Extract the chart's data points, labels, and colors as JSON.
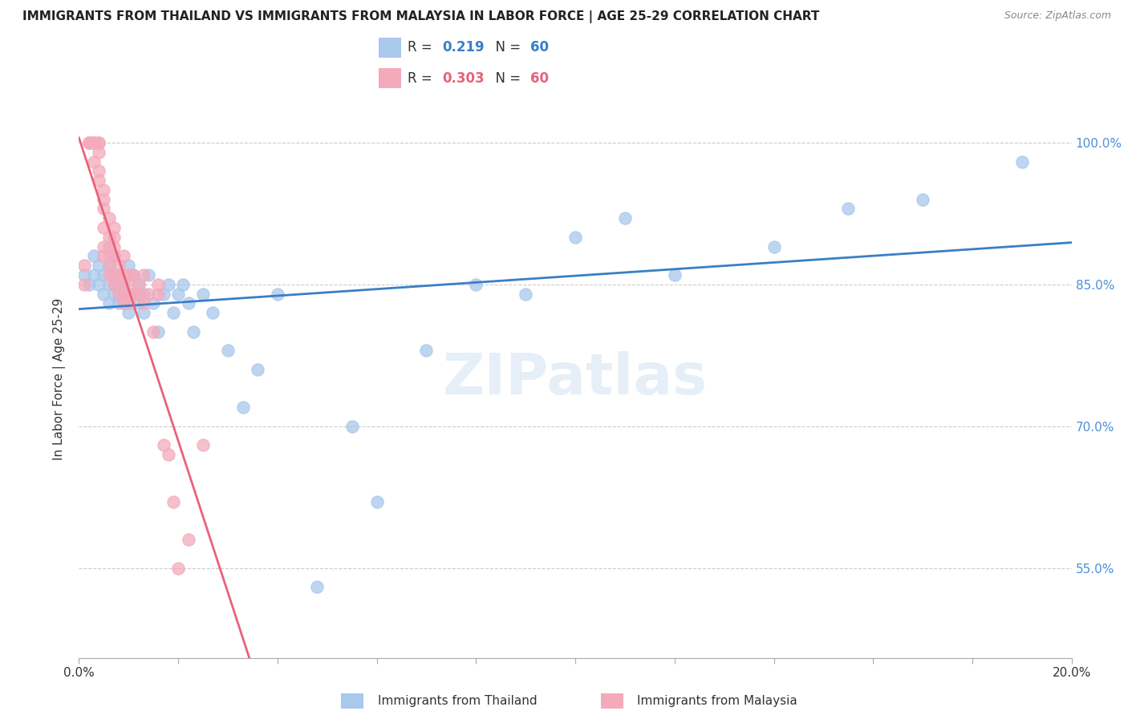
{
  "title": "IMMIGRANTS FROM THAILAND VS IMMIGRANTS FROM MALAYSIA IN LABOR FORCE | AGE 25-29 CORRELATION CHART",
  "source": "Source: ZipAtlas.com",
  "ylabel": "In Labor Force | Age 25-29",
  "yticks": [
    0.55,
    0.7,
    0.85,
    1.0
  ],
  "ytick_labels": [
    "55.0%",
    "70.0%",
    "85.0%",
    "100.0%"
  ],
  "xlim": [
    0.0,
    0.2
  ],
  "ylim": [
    0.455,
    1.045
  ],
  "thailand_R": 0.219,
  "thailand_N": 60,
  "malaysia_R": 0.303,
  "malaysia_N": 60,
  "thailand_color": "#A8C8EC",
  "malaysia_color": "#F4AABB",
  "thailand_line_color": "#3A7EC6",
  "malaysia_line_color": "#E8627A",
  "legend_label_thailand": "Immigrants from Thailand",
  "legend_label_malaysia": "Immigrants from Malaysia",
  "watermark": "ZIPatlas",
  "thailand_x": [
    0.001,
    0.002,
    0.003,
    0.003,
    0.004,
    0.004,
    0.005,
    0.005,
    0.006,
    0.006,
    0.006,
    0.007,
    0.007,
    0.007,
    0.007,
    0.008,
    0.008,
    0.008,
    0.008,
    0.009,
    0.009,
    0.009,
    0.01,
    0.01,
    0.01,
    0.011,
    0.011,
    0.012,
    0.012,
    0.013,
    0.013,
    0.014,
    0.015,
    0.016,
    0.017,
    0.018,
    0.019,
    0.02,
    0.021,
    0.022,
    0.023,
    0.025,
    0.027,
    0.03,
    0.033,
    0.036,
    0.04,
    0.048,
    0.055,
    0.06,
    0.07,
    0.08,
    0.09,
    0.1,
    0.11,
    0.12,
    0.14,
    0.155,
    0.17,
    0.19
  ],
  "thailand_y": [
    0.86,
    0.85,
    0.86,
    0.88,
    0.87,
    0.85,
    0.84,
    0.86,
    0.85,
    0.83,
    0.87,
    0.84,
    0.86,
    0.88,
    0.85,
    0.84,
    0.83,
    0.86,
    0.85,
    0.84,
    0.85,
    0.83,
    0.87,
    0.84,
    0.82,
    0.86,
    0.84,
    0.83,
    0.85,
    0.82,
    0.84,
    0.86,
    0.83,
    0.8,
    0.84,
    0.85,
    0.82,
    0.84,
    0.85,
    0.83,
    0.8,
    0.84,
    0.82,
    0.78,
    0.72,
    0.76,
    0.84,
    0.53,
    0.7,
    0.62,
    0.78,
    0.85,
    0.84,
    0.9,
    0.92,
    0.86,
    0.89,
    0.93,
    0.94,
    0.98
  ],
  "malaysia_x": [
    0.001,
    0.001,
    0.002,
    0.002,
    0.002,
    0.003,
    0.003,
    0.003,
    0.003,
    0.004,
    0.004,
    0.004,
    0.004,
    0.004,
    0.005,
    0.005,
    0.005,
    0.005,
    0.005,
    0.005,
    0.006,
    0.006,
    0.006,
    0.006,
    0.006,
    0.006,
    0.007,
    0.007,
    0.007,
    0.007,
    0.007,
    0.007,
    0.008,
    0.008,
    0.008,
    0.008,
    0.009,
    0.009,
    0.009,
    0.009,
    0.01,
    0.01,
    0.01,
    0.01,
    0.011,
    0.011,
    0.012,
    0.012,
    0.013,
    0.013,
    0.014,
    0.015,
    0.016,
    0.016,
    0.017,
    0.018,
    0.019,
    0.02,
    0.022,
    0.025
  ],
  "malaysia_y": [
    0.87,
    0.85,
    1.0,
    1.0,
    1.0,
    1.0,
    1.0,
    1.0,
    0.98,
    1.0,
    1.0,
    0.99,
    0.97,
    0.96,
    0.95,
    0.94,
    0.93,
    0.91,
    0.89,
    0.88,
    0.92,
    0.9,
    0.89,
    0.88,
    0.87,
    0.86,
    0.91,
    0.9,
    0.89,
    0.88,
    0.86,
    0.85,
    0.87,
    0.86,
    0.85,
    0.84,
    0.88,
    0.86,
    0.84,
    0.83,
    0.86,
    0.85,
    0.84,
    0.83,
    0.86,
    0.84,
    0.85,
    0.84,
    0.86,
    0.83,
    0.84,
    0.8,
    0.85,
    0.84,
    0.68,
    0.67,
    0.62,
    0.55,
    0.58,
    0.68
  ]
}
